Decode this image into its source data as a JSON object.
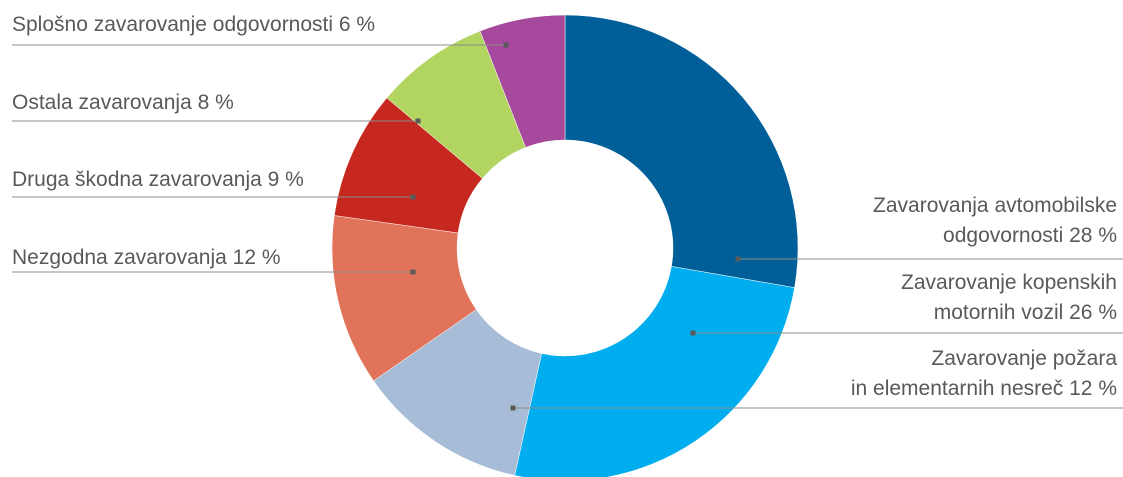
{
  "chart_data": {
    "type": "pie",
    "donut": true,
    "slices": [
      {
        "label": "Zavarovanja avtomobilske odgovornosti 28 %",
        "value": 28,
        "color": "#005f99"
      },
      {
        "label": "Zavarovanje kopenskih motornih vozil 26 %",
        "value": 26,
        "color": "#00aeef"
      },
      {
        "label": "Zavarovanje požara in elementarnih nesreč 12 %",
        "value": 12,
        "color": "#a7bcd7"
      },
      {
        "label": "Nezgodna zavarovanja 12 %",
        "value": 12,
        "color": "#e0735a"
      },
      {
        "label": "Druga škodna zavarovanja 9 %",
        "value": 9,
        "color": "#c6281f"
      },
      {
        "label": "Ostala zavarovanja 8 %",
        "value": 8,
        "color": "#b2d460"
      },
      {
        "label": "Splošno zavarovanje odgovornosti 6 %",
        "value": 6,
        "color": "#a6499c"
      }
    ],
    "labels": [
      {
        "lines": [
          "Zavarovanja avtomobilske",
          "odgovornosti 28 %"
        ]
      },
      {
        "lines": [
          "Zavarovanje kopenskih",
          "motornih vozil 26 %"
        ]
      },
      {
        "lines": [
          "Zavarovanje požara",
          "in elementarnih nesreč 12 %"
        ]
      },
      {
        "lines": [
          "Nezgodna zavarovanja 12 %"
        ]
      },
      {
        "lines": [
          "Druga škodna zavarovanja 9 %"
        ]
      },
      {
        "lines": [
          "Ostala zavarovanja 8 %"
        ]
      },
      {
        "lines": [
          "Splošno zavarovanje odgovornosti 6 %"
        ]
      }
    ],
    "label_color": "#595959",
    "leader_color": "#8c8c8c"
  }
}
